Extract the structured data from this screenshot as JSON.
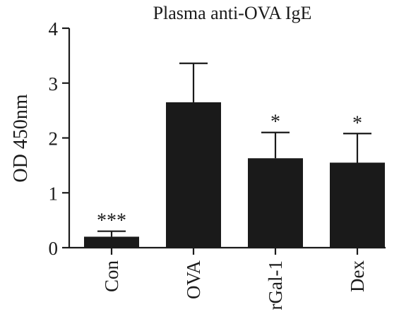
{
  "chart_data": {
    "type": "bar",
    "title": "Plasma anti-OVA IgE",
    "xlabel": "",
    "ylabel": "OD 450nm",
    "ylim": [
      0,
      4
    ],
    "yticks": [
      0,
      1,
      2,
      3,
      4
    ],
    "categories": [
      "Con",
      "OVA",
      "rGal-1",
      "Dex"
    ],
    "values": [
      0.2,
      2.65,
      1.63,
      1.55
    ],
    "error_upper": [
      0.3,
      3.36,
      2.1,
      2.08
    ],
    "significance": [
      "***",
      "",
      "*",
      "*"
    ],
    "grid": false,
    "legend": "none",
    "bar_color": "#1a1a1a"
  }
}
